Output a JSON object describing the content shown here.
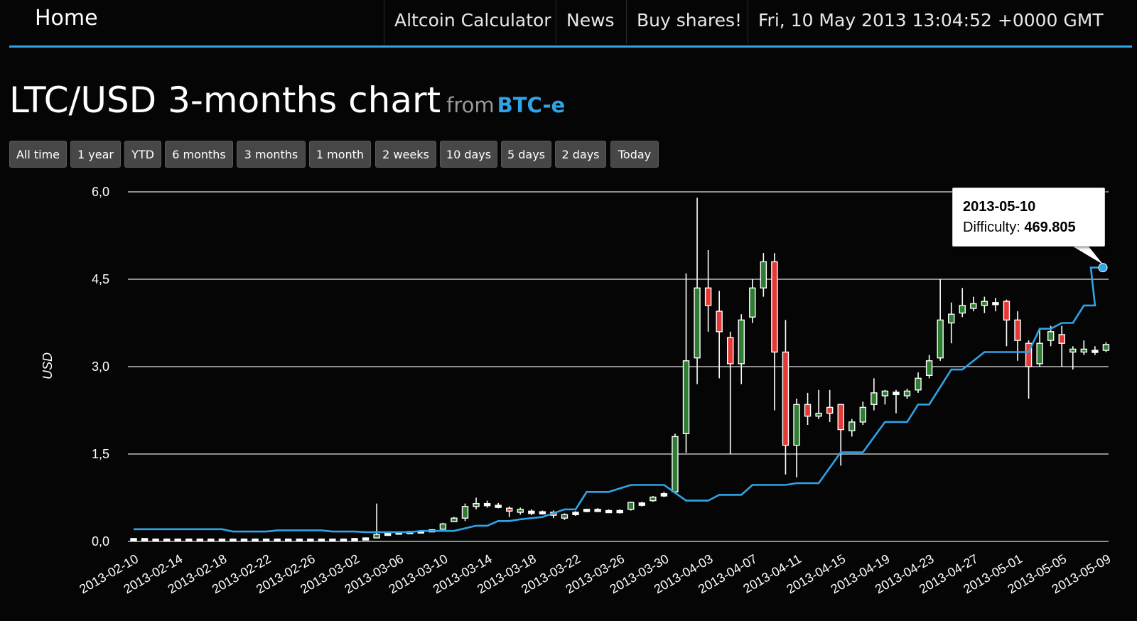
{
  "nav": {
    "home": "Home",
    "items": [
      "Altcoin Calculator",
      "News",
      "Buy shares!"
    ],
    "datetime": "Fri, 10 May 2013 13:04:52 +0000 GMT"
  },
  "page": {
    "title": "LTC/USD 3-months chart",
    "from_label": "from",
    "source": "BTC-e"
  },
  "range_buttons": [
    "All time",
    "1 year",
    "YTD",
    "6 months",
    "3 months",
    "1 month",
    "2 weeks",
    "10 days",
    "5 days",
    "2 days",
    "Today"
  ],
  "tooltip": {
    "date": "2013-05-10",
    "label": "Difficulty:",
    "value": "469.805"
  },
  "colors": {
    "accent": "#2fa4e7",
    "up_candle": "#2e7d32",
    "down_candle": "#e53935",
    "grid": "#e0e0e0"
  },
  "chart_data": {
    "type": "candlestick",
    "ylabel": "USD",
    "ylim": [
      0,
      6
    ],
    "y_ticks": [
      "0,0",
      "1,5",
      "3,0",
      "4,5",
      "6,0"
    ],
    "y_tick_values": [
      0,
      1.5,
      3,
      4.5,
      6
    ],
    "x_tick_labels": [
      "2013-02-10",
      "2013-02-14",
      "2013-02-18",
      "2013-02-22",
      "2013-02-26",
      "2013-03-02",
      "2013-03-06",
      "2013-03-10",
      "2013-03-14",
      "2013-03-18",
      "2013-03-22",
      "2013-03-26",
      "2013-03-30",
      "2013-04-03",
      "2013-04-07",
      "2013-04-11",
      "2013-04-15",
      "2013-04-19",
      "2013-04-23",
      "2013-04-27",
      "2013-05-01",
      "2013-05-05",
      "2013-05-09"
    ],
    "candles": [
      {
        "date": "2013-02-10",
        "o": 0.04,
        "h": 0.05,
        "l": 0.03,
        "c": 0.05
      },
      {
        "date": "2013-02-11",
        "o": 0.05,
        "h": 0.05,
        "l": 0.03,
        "c": 0.04
      },
      {
        "date": "2013-02-12",
        "o": 0.04,
        "h": 0.05,
        "l": 0.03,
        "c": 0.04
      },
      {
        "date": "2013-02-13",
        "o": 0.04,
        "h": 0.05,
        "l": 0.03,
        "c": 0.04
      },
      {
        "date": "2013-02-14",
        "o": 0.04,
        "h": 0.05,
        "l": 0.03,
        "c": 0.04
      },
      {
        "date": "2013-02-15",
        "o": 0.04,
        "h": 0.05,
        "l": 0.03,
        "c": 0.04
      },
      {
        "date": "2013-02-16",
        "o": 0.04,
        "h": 0.05,
        "l": 0.03,
        "c": 0.04
      },
      {
        "date": "2013-02-17",
        "o": 0.04,
        "h": 0.05,
        "l": 0.03,
        "c": 0.04
      },
      {
        "date": "2013-02-18",
        "o": 0.04,
        "h": 0.05,
        "l": 0.03,
        "c": 0.04
      },
      {
        "date": "2013-02-19",
        "o": 0.04,
        "h": 0.05,
        "l": 0.03,
        "c": 0.04
      },
      {
        "date": "2013-02-20",
        "o": 0.04,
        "h": 0.05,
        "l": 0.03,
        "c": 0.04
      },
      {
        "date": "2013-02-21",
        "o": 0.04,
        "h": 0.05,
        "l": 0.03,
        "c": 0.04
      },
      {
        "date": "2013-02-22",
        "o": 0.04,
        "h": 0.05,
        "l": 0.03,
        "c": 0.04
      },
      {
        "date": "2013-02-23",
        "o": 0.04,
        "h": 0.05,
        "l": 0.03,
        "c": 0.04
      },
      {
        "date": "2013-02-24",
        "o": 0.04,
        "h": 0.05,
        "l": 0.03,
        "c": 0.04
      },
      {
        "date": "2013-02-25",
        "o": 0.04,
        "h": 0.05,
        "l": 0.03,
        "c": 0.04
      },
      {
        "date": "2013-02-26",
        "o": 0.04,
        "h": 0.05,
        "l": 0.03,
        "c": 0.04
      },
      {
        "date": "2013-02-27",
        "o": 0.04,
        "h": 0.05,
        "l": 0.03,
        "c": 0.04
      },
      {
        "date": "2013-02-28",
        "o": 0.04,
        "h": 0.05,
        "l": 0.03,
        "c": 0.04
      },
      {
        "date": "2013-03-01",
        "o": 0.04,
        "h": 0.05,
        "l": 0.03,
        "c": 0.04
      },
      {
        "date": "2013-03-02",
        "o": 0.04,
        "h": 0.06,
        "l": 0.03,
        "c": 0.05
      },
      {
        "date": "2013-03-03",
        "o": 0.05,
        "h": 0.07,
        "l": 0.04,
        "c": 0.06
      },
      {
        "date": "2013-03-04",
        "o": 0.06,
        "h": 0.65,
        "l": 0.06,
        "c": 0.12
      },
      {
        "date": "2013-03-05",
        "o": 0.12,
        "h": 0.15,
        "l": 0.1,
        "c": 0.14
      },
      {
        "date": "2013-03-06",
        "o": 0.14,
        "h": 0.17,
        "l": 0.13,
        "c": 0.16
      },
      {
        "date": "2013-03-07",
        "o": 0.16,
        "h": 0.18,
        "l": 0.15,
        "c": 0.17
      },
      {
        "date": "2013-03-08",
        "o": 0.17,
        "h": 0.19,
        "l": 0.16,
        "c": 0.18
      },
      {
        "date": "2013-03-09",
        "o": 0.18,
        "h": 0.21,
        "l": 0.17,
        "c": 0.2
      },
      {
        "date": "2013-03-10",
        "o": 0.21,
        "h": 0.32,
        "l": 0.2,
        "c": 0.3
      },
      {
        "date": "2013-03-11",
        "o": 0.34,
        "h": 0.42,
        "l": 0.33,
        "c": 0.4
      },
      {
        "date": "2013-03-12",
        "o": 0.4,
        "h": 0.65,
        "l": 0.35,
        "c": 0.6
      },
      {
        "date": "2013-03-13",
        "o": 0.6,
        "h": 0.75,
        "l": 0.55,
        "c": 0.65
      },
      {
        "date": "2013-03-14",
        "o": 0.65,
        "h": 0.7,
        "l": 0.58,
        "c": 0.62
      },
      {
        "date": "2013-03-15",
        "o": 0.62,
        "h": 0.66,
        "l": 0.57,
        "c": 0.6
      },
      {
        "date": "2013-03-16",
        "o": 0.57,
        "h": 0.6,
        "l": 0.42,
        "c": 0.52
      },
      {
        "date": "2013-03-17",
        "o": 0.5,
        "h": 0.58,
        "l": 0.46,
        "c": 0.55
      },
      {
        "date": "2013-03-18",
        "o": 0.52,
        "h": 0.55,
        "l": 0.45,
        "c": 0.48
      },
      {
        "date": "2013-03-19",
        "o": 0.48,
        "h": 0.53,
        "l": 0.46,
        "c": 0.51
      },
      {
        "date": "2013-03-20",
        "o": 0.5,
        "h": 0.53,
        "l": 0.4,
        "c": 0.45
      },
      {
        "date": "2013-03-21",
        "o": 0.4,
        "h": 0.48,
        "l": 0.37,
        "c": 0.46
      },
      {
        "date": "2013-03-22",
        "o": 0.46,
        "h": 0.52,
        "l": 0.44,
        "c": 0.5
      },
      {
        "date": "2013-03-23",
        "o": 0.52,
        "h": 0.56,
        "l": 0.5,
        "c": 0.55
      },
      {
        "date": "2013-03-24",
        "o": 0.55,
        "h": 0.57,
        "l": 0.51,
        "c": 0.53
      },
      {
        "date": "2013-03-25",
        "o": 0.53,
        "h": 0.55,
        "l": 0.49,
        "c": 0.5
      },
      {
        "date": "2013-03-26",
        "o": 0.5,
        "h": 0.55,
        "l": 0.48,
        "c": 0.53
      },
      {
        "date": "2013-03-27",
        "o": 0.55,
        "h": 0.68,
        "l": 0.53,
        "c": 0.67
      },
      {
        "date": "2013-03-28",
        "o": 0.62,
        "h": 0.68,
        "l": 0.6,
        "c": 0.66
      },
      {
        "date": "2013-03-29",
        "o": 0.7,
        "h": 0.78,
        "l": 0.68,
        "c": 0.76
      },
      {
        "date": "2013-03-30",
        "o": 0.78,
        "h": 0.85,
        "l": 0.76,
        "c": 0.82
      },
      {
        "date": "2013-03-31",
        "o": 0.85,
        "h": 1.85,
        "l": 0.82,
        "c": 1.8
      },
      {
        "date": "2013-04-01",
        "o": 1.85,
        "h": 4.6,
        "l": 1.52,
        "c": 3.1
      },
      {
        "date": "2013-04-02",
        "o": 3.15,
        "h": 5.9,
        "l": 2.7,
        "c": 4.35
      },
      {
        "date": "2013-04-03",
        "o": 4.35,
        "h": 5.0,
        "l": 3.6,
        "c": 4.05
      },
      {
        "date": "2013-04-04",
        "o": 3.95,
        "h": 4.3,
        "l": 2.8,
        "c": 3.6
      },
      {
        "date": "2013-04-05",
        "o": 3.5,
        "h": 3.6,
        "l": 1.5,
        "c": 3.05
      },
      {
        "date": "2013-04-06",
        "o": 3.05,
        "h": 3.9,
        "l": 2.7,
        "c": 3.8
      },
      {
        "date": "2013-04-07",
        "o": 3.85,
        "h": 4.5,
        "l": 3.75,
        "c": 4.35
      },
      {
        "date": "2013-04-08",
        "o": 4.35,
        "h": 4.95,
        "l": 4.2,
        "c": 4.8
      },
      {
        "date": "2013-04-09",
        "o": 4.8,
        "h": 4.95,
        "l": 2.25,
        "c": 3.25
      },
      {
        "date": "2013-04-10",
        "o": 3.25,
        "h": 3.8,
        "l": 1.15,
        "c": 1.65
      },
      {
        "date": "2013-04-11",
        "o": 1.65,
        "h": 2.45,
        "l": 1.1,
        "c": 2.35
      },
      {
        "date": "2013-04-12",
        "o": 2.35,
        "h": 2.55,
        "l": 2.0,
        "c": 2.15
      },
      {
        "date": "2013-04-13",
        "o": 2.15,
        "h": 2.6,
        "l": 2.1,
        "c": 2.2
      },
      {
        "date": "2013-04-14",
        "o": 2.3,
        "h": 2.6,
        "l": 2.05,
        "c": 2.2
      },
      {
        "date": "2013-04-15",
        "o": 2.35,
        "h": 2.35,
        "l": 1.3,
        "c": 1.92
      },
      {
        "date": "2013-04-16",
        "o": 1.9,
        "h": 2.1,
        "l": 1.8,
        "c": 2.05
      },
      {
        "date": "2013-04-17",
        "o": 2.05,
        "h": 2.4,
        "l": 2.0,
        "c": 2.3
      },
      {
        "date": "2013-04-18",
        "o": 2.35,
        "h": 2.8,
        "l": 2.25,
        "c": 2.55
      },
      {
        "date": "2013-04-19",
        "o": 2.5,
        "h": 2.6,
        "l": 2.35,
        "c": 2.58
      },
      {
        "date": "2013-04-20",
        "o": 2.52,
        "h": 2.6,
        "l": 2.2,
        "c": 2.56
      },
      {
        "date": "2013-04-21",
        "o": 2.5,
        "h": 2.62,
        "l": 2.45,
        "c": 2.58
      },
      {
        "date": "2013-04-22",
        "o": 2.6,
        "h": 2.9,
        "l": 2.55,
        "c": 2.8
      },
      {
        "date": "2013-04-23",
        "o": 2.85,
        "h": 3.2,
        "l": 2.8,
        "c": 3.1
      },
      {
        "date": "2013-04-24",
        "o": 3.15,
        "h": 4.5,
        "l": 3.1,
        "c": 3.8
      },
      {
        "date": "2013-04-25",
        "o": 3.75,
        "h": 4.1,
        "l": 3.4,
        "c": 3.9
      },
      {
        "date": "2013-04-26",
        "o": 3.92,
        "h": 4.35,
        "l": 3.85,
        "c": 4.05
      },
      {
        "date": "2013-04-27",
        "o": 4.0,
        "h": 4.2,
        "l": 3.95,
        "c": 4.08
      },
      {
        "date": "2013-04-28",
        "o": 4.05,
        "h": 4.2,
        "l": 3.92,
        "c": 4.12
      },
      {
        "date": "2013-04-29",
        "o": 4.1,
        "h": 4.18,
        "l": 3.95,
        "c": 4.08
      },
      {
        "date": "2013-04-30",
        "o": 4.12,
        "h": 4.15,
        "l": 3.35,
        "c": 3.8
      },
      {
        "date": "2013-05-01",
        "o": 3.8,
        "h": 3.95,
        "l": 3.1,
        "c": 3.45
      },
      {
        "date": "2013-05-02",
        "o": 3.4,
        "h": 3.45,
        "l": 2.45,
        "c": 3.0
      },
      {
        "date": "2013-05-03",
        "o": 3.05,
        "h": 3.65,
        "l": 3.0,
        "c": 3.4
      },
      {
        "date": "2013-05-04",
        "o": 3.45,
        "h": 3.7,
        "l": 3.35,
        "c": 3.6
      },
      {
        "date": "2013-05-05",
        "o": 3.55,
        "h": 3.7,
        "l": 3.0,
        "c": 3.4
      },
      {
        "date": "2013-05-06",
        "o": 3.25,
        "h": 3.35,
        "l": 2.95,
        "c": 3.3
      },
      {
        "date": "2013-05-07",
        "o": 3.25,
        "h": 3.45,
        "l": 3.2,
        "c": 3.3
      },
      {
        "date": "2013-05-08",
        "o": 3.25,
        "h": 3.35,
        "l": 3.2,
        "c": 3.28
      },
      {
        "date": "2013-05-09",
        "o": 3.28,
        "h": 3.42,
        "l": 3.25,
        "c": 3.38
      }
    ],
    "difficulty_series": {
      "name": "Difficulty",
      "points": [
        {
          "date": "2013-02-10",
          "y": 0.21
        },
        {
          "date": "2013-02-18",
          "y": 0.21
        },
        {
          "date": "2013-02-19",
          "y": 0.17
        },
        {
          "date": "2013-02-22",
          "y": 0.17
        },
        {
          "date": "2013-02-23",
          "y": 0.19
        },
        {
          "date": "2013-02-27",
          "y": 0.19
        },
        {
          "date": "2013-02-28",
          "y": 0.17
        },
        {
          "date": "2013-03-02",
          "y": 0.17
        },
        {
          "date": "2013-03-03",
          "y": 0.16
        },
        {
          "date": "2013-03-07",
          "y": 0.16
        },
        {
          "date": "2013-03-08",
          "y": 0.18
        },
        {
          "date": "2013-03-11",
          "y": 0.18
        },
        {
          "date": "2013-03-13",
          "y": 0.27
        },
        {
          "date": "2013-03-14",
          "y": 0.27
        },
        {
          "date": "2013-03-15",
          "y": 0.35
        },
        {
          "date": "2013-03-16",
          "y": 0.35
        },
        {
          "date": "2013-03-17",
          "y": 0.38
        },
        {
          "date": "2013-03-19",
          "y": 0.42
        },
        {
          "date": "2013-03-21",
          "y": 0.55
        },
        {
          "date": "2013-03-22",
          "y": 0.55
        },
        {
          "date": "2013-03-23",
          "y": 0.85
        },
        {
          "date": "2013-03-25",
          "y": 0.85
        },
        {
          "date": "2013-03-27",
          "y": 0.97
        },
        {
          "date": "2013-03-30",
          "y": 0.97
        },
        {
          "date": "2013-04-01",
          "y": 0.7
        },
        {
          "date": "2013-04-03",
          "y": 0.7
        },
        {
          "date": "2013-04-04",
          "y": 0.8
        },
        {
          "date": "2013-04-06",
          "y": 0.8
        },
        {
          "date": "2013-04-07",
          "y": 0.97
        },
        {
          "date": "2013-04-10",
          "y": 0.97
        },
        {
          "date": "2013-04-11",
          "y": 1.0
        },
        {
          "date": "2013-04-13",
          "y": 1.0
        },
        {
          "date": "2013-04-15",
          "y": 1.53
        },
        {
          "date": "2013-04-17",
          "y": 1.53
        },
        {
          "date": "2013-04-19",
          "y": 2.05
        },
        {
          "date": "2013-04-21",
          "y": 2.05
        },
        {
          "date": "2013-04-22",
          "y": 2.35
        },
        {
          "date": "2013-04-23",
          "y": 2.35
        },
        {
          "date": "2013-04-25",
          "y": 2.95
        },
        {
          "date": "2013-04-26",
          "y": 2.95
        },
        {
          "date": "2013-04-28",
          "y": 3.25
        },
        {
          "date": "2013-04-30",
          "y": 3.25
        },
        {
          "date": "2013-05-02",
          "y": 3.25
        },
        {
          "date": "2013-05-03",
          "y": 3.65
        },
        {
          "date": "2013-05-04",
          "y": 3.65
        },
        {
          "date": "2013-05-05",
          "y": 3.75
        },
        {
          "date": "2013-05-06",
          "y": 3.75
        },
        {
          "date": "2013-05-07",
          "y": 4.05
        },
        {
          "date": "2013-05-08",
          "y": 4.05
        }
      ]
    },
    "grid": true
  }
}
